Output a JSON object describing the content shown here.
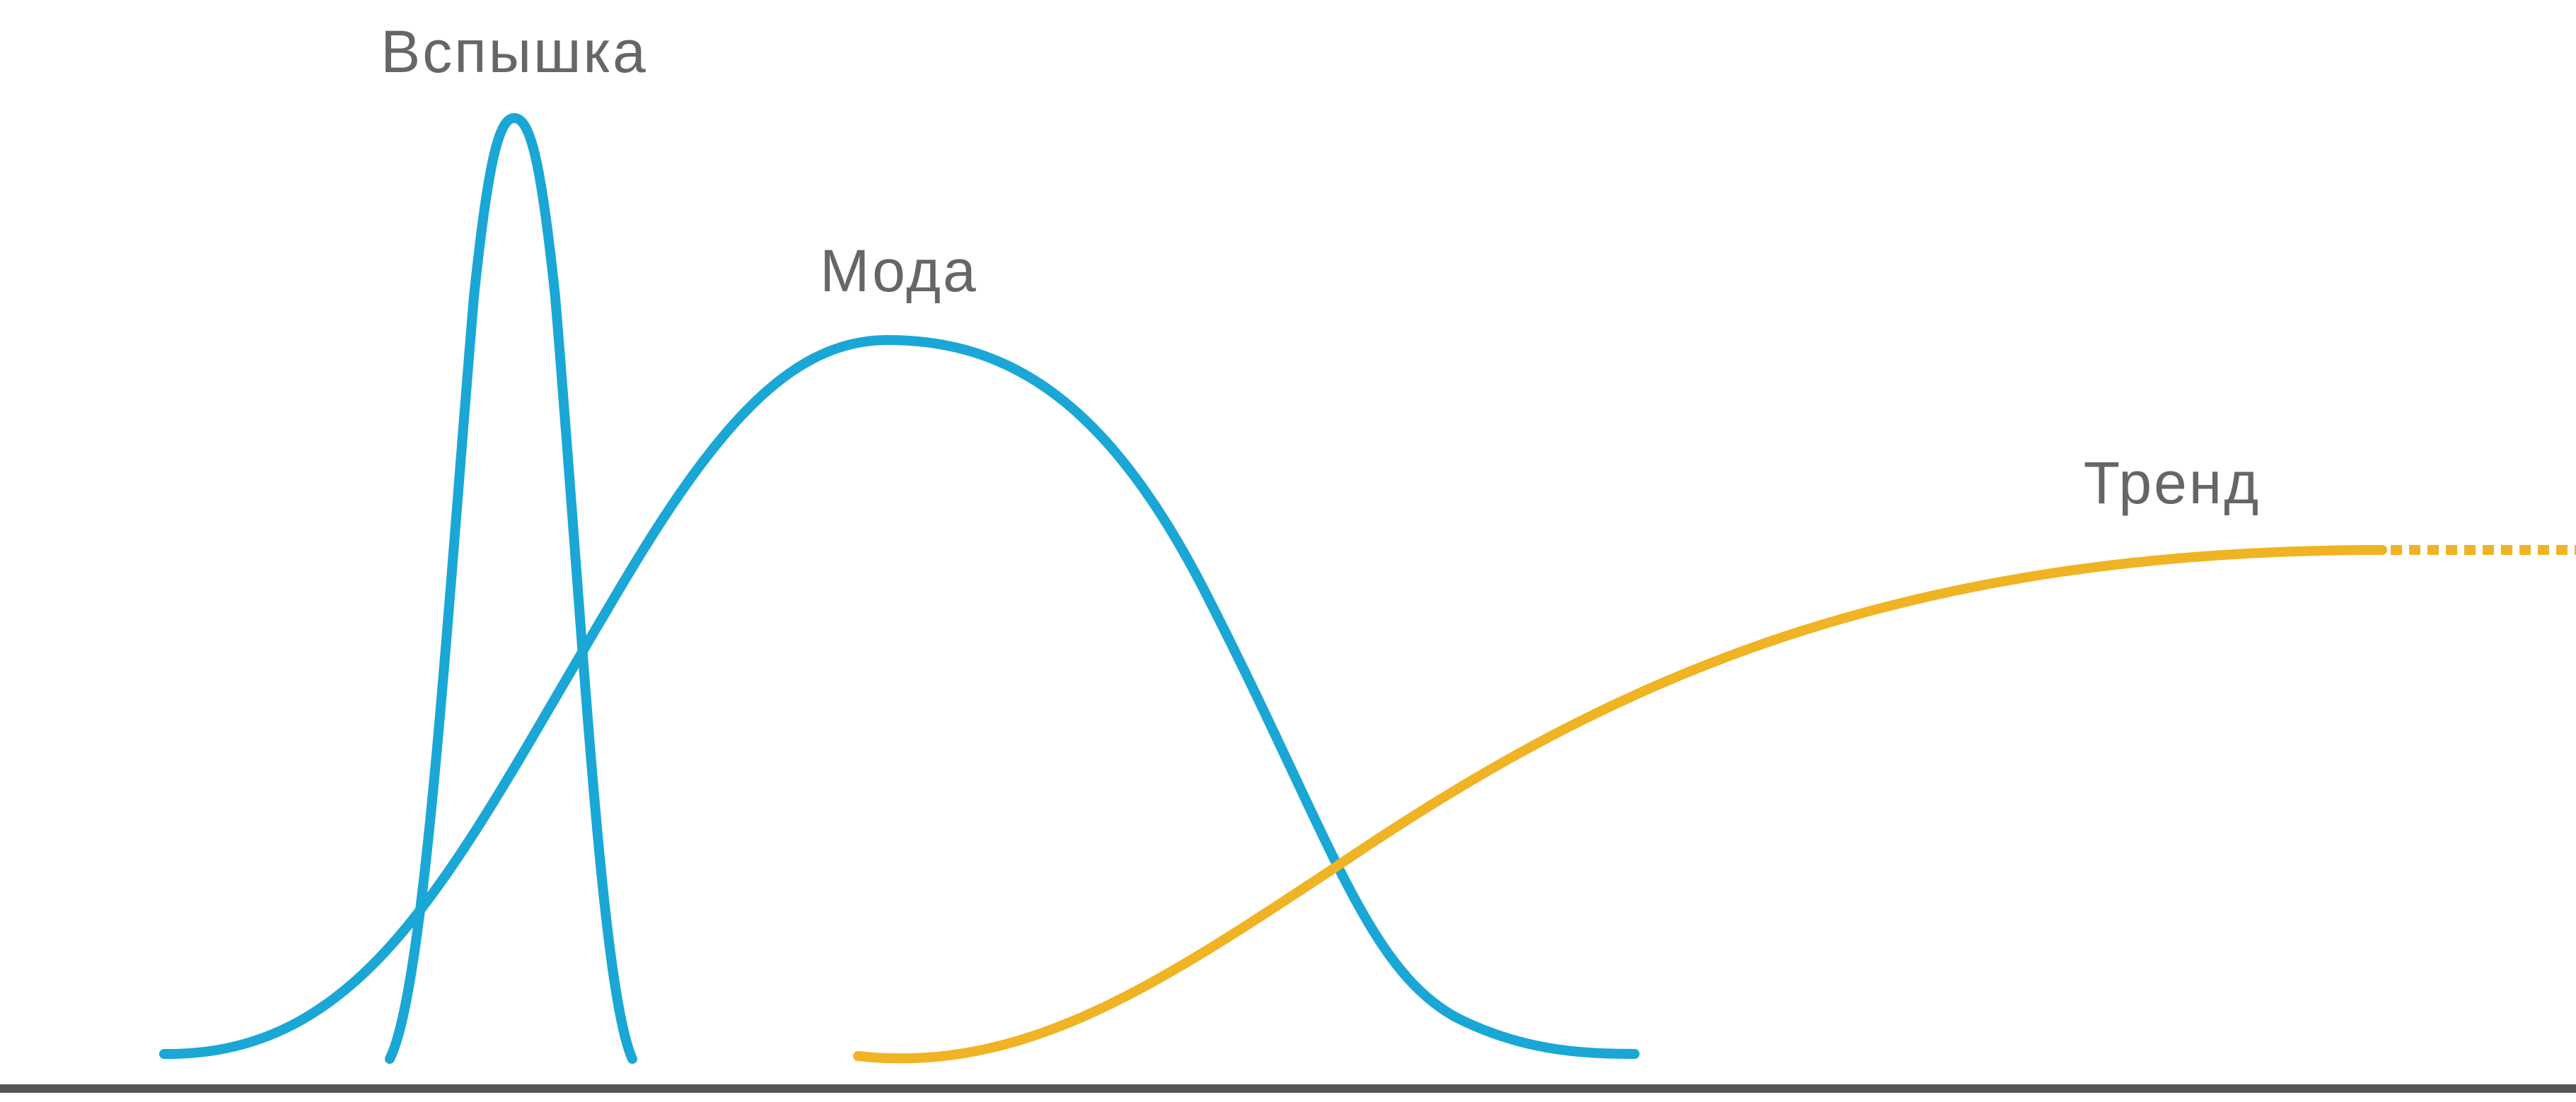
{
  "labels": {
    "flash": "Вспышка",
    "fad": "Мода",
    "trend": "Тренд"
  }
}
